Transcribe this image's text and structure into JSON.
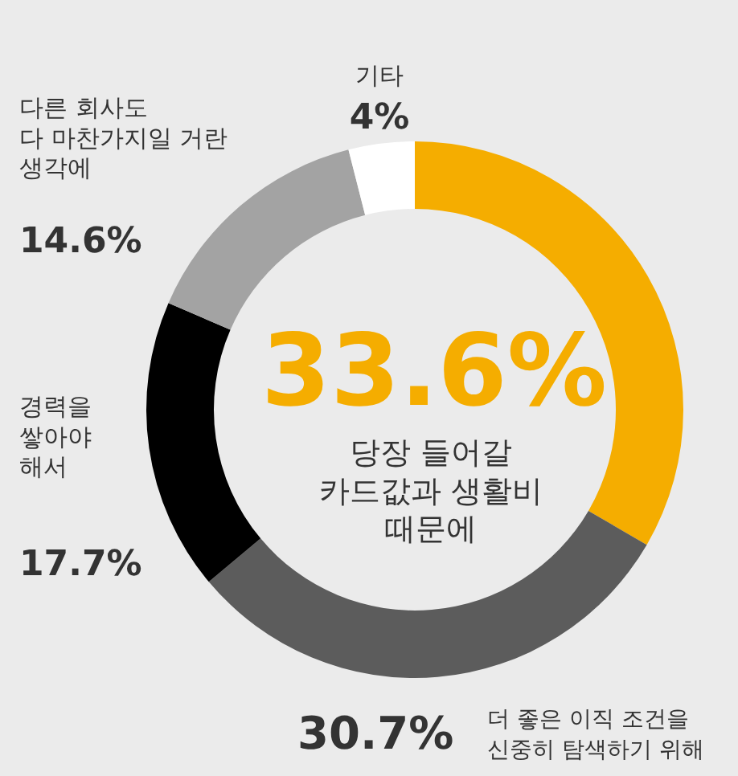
{
  "chart_data": {
    "type": "donut",
    "categories": [
      "당장 들어갈\n카드값과 생활비\n때문에",
      "더 좋은 이직 조건을\n신중히 탐색하기 위해",
      "경력을\n쌓아야\n해서",
      "다른 회사도\n다 마찬가지일 거란\n생각에",
      "기타"
    ],
    "values": [
      33.6,
      30.7,
      17.7,
      14.6,
      4
    ],
    "value_labels": [
      "33.6%",
      "30.7%",
      "17.7%",
      "14.6%",
      "4%"
    ],
    "colors": [
      "#f5ad00",
      "#5c5c5c",
      "#000000",
      "#a3a3a3",
      "#ffffff"
    ]
  }
}
